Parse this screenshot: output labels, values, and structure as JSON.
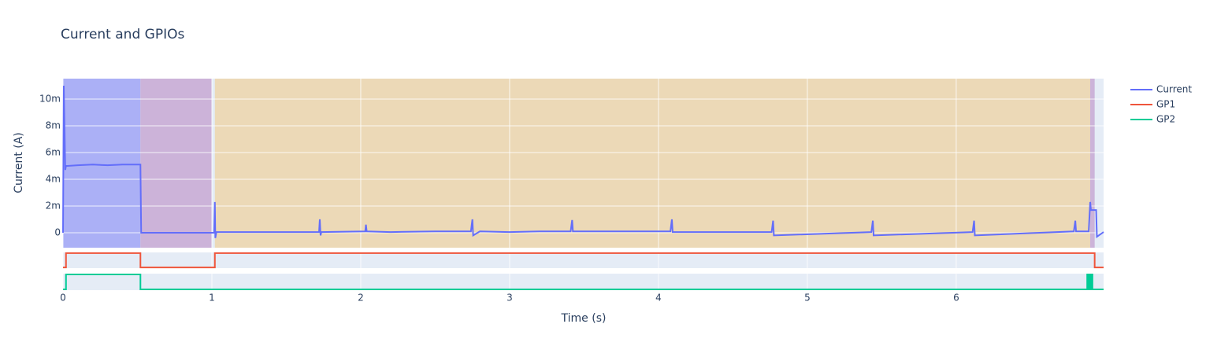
{
  "chart_data": {
    "type": "line",
    "title": "Current and GPIOs",
    "xlabel": "Time (s)",
    "ylabel": "Current (A)",
    "xlim": [
      0,
      6.99
    ],
    "xticks": [
      0,
      1,
      2,
      3,
      4,
      5,
      6
    ],
    "ylim": [
      -0.00112,
      0.01153
    ],
    "yticks": [
      0,
      {
        "value": 0.002,
        "label": "2m"
      },
      {
        "value": 0.004,
        "label": "4m"
      },
      {
        "value": 0.006,
        "label": "6m"
      },
      {
        "value": 0.008,
        "label": "8m"
      },
      {
        "value": 0.01,
        "label": "10m"
      }
    ],
    "y2lim": [
      -0.05,
      1.05
    ],
    "y3lim": [
      -0.05,
      1.05
    ],
    "grid": true,
    "legend": "right",
    "regions": [
      {
        "x0": 0,
        "x1": 0.52,
        "color": "#abb0f6"
      },
      {
        "x0": 0.52,
        "x1": 1.0,
        "color": "#ccb3d9"
      },
      {
        "x0": 1.02,
        "x1": 6.9,
        "color": "#ecd9b7"
      },
      {
        "x0": 6.9,
        "x1": 6.93,
        "color": "#ccb3d9"
      }
    ],
    "series": [
      {
        "name": "Current",
        "color": "#636efa",
        "axis": "y",
        "x": [
          0,
          0.005,
          0.01,
          0.015,
          0.02,
          0.03,
          0.1,
          0.2,
          0.3,
          0.4,
          0.51,
          0.52,
          0.525,
          1.015,
          1.02,
          1.023,
          1.03,
          1.72,
          1.725,
          1.73,
          1.735,
          2.03,
          2.035,
          2.04,
          2.2,
          2.5,
          2.74,
          2.75,
          2.755,
          2.8,
          3.0,
          3.2,
          3.41,
          3.42,
          3.425,
          3.6,
          3.8,
          4.08,
          4.09,
          4.095,
          4.4,
          4.76,
          4.77,
          4.775,
          5.43,
          5.44,
          5.445,
          6.11,
          6.12,
          6.125,
          6.79,
          6.8,
          6.805,
          6.89,
          6.9,
          6.905,
          6.94,
          6.945,
          6.99
        ],
        "values": [
          0,
          0.011,
          0.008,
          0.0047,
          0.005,
          0.005,
          0.00505,
          0.0051,
          0.00505,
          0.0051,
          0.0051,
          0.0051,
          0,
          0,
          0.0023,
          -0.0004,
          5e-05,
          5e-05,
          0.001,
          -0.0002,
          5e-05,
          0.0001,
          0.0006,
          0.0001,
          5e-05,
          0.0001,
          0.0001,
          0.001,
          -0.0002,
          0.0001,
          5e-05,
          0.0001,
          0.0001,
          0.00095,
          0.0001,
          0.0001,
          0.0001,
          0.0001,
          0.001,
          5e-05,
          5e-05,
          5e-05,
          0.0009,
          -0.0002,
          5e-05,
          0.0009,
          -0.0002,
          5e-05,
          0.0009,
          -0.0002,
          0.0001,
          0.0009,
          0.0001,
          0.0001,
          0.0023,
          0.0017,
          0.0017,
          -0.0003,
          5e-05
        ]
      },
      {
        "name": "GP1",
        "color": "#ef553b",
        "axis": "y2",
        "x": [
          0,
          0.02,
          0.02,
          0.52,
          0.52,
          1.02,
          1.02,
          6.93,
          6.93,
          6.99
        ],
        "values": [
          0,
          0,
          1,
          1,
          0,
          0,
          1,
          1,
          0,
          0
        ]
      },
      {
        "name": "GP2",
        "color": "#00cc96",
        "axis": "y3",
        "x": [
          0,
          0.02,
          0.02,
          0.52,
          0.52,
          6.88,
          6.88,
          6.885,
          6.885,
          6.89,
          6.89,
          6.895,
          6.895,
          6.9,
          6.9,
          6.905,
          6.905,
          6.91,
          6.91,
          6.915,
          6.915,
          6.92,
          6.92,
          6.99
        ],
        "values": [
          0,
          0,
          1,
          1,
          0,
          0,
          1,
          1,
          0,
          0,
          1,
          1,
          0,
          0,
          1,
          1,
          0,
          0,
          1,
          1,
          0,
          0,
          0,
          0
        ]
      }
    ]
  }
}
